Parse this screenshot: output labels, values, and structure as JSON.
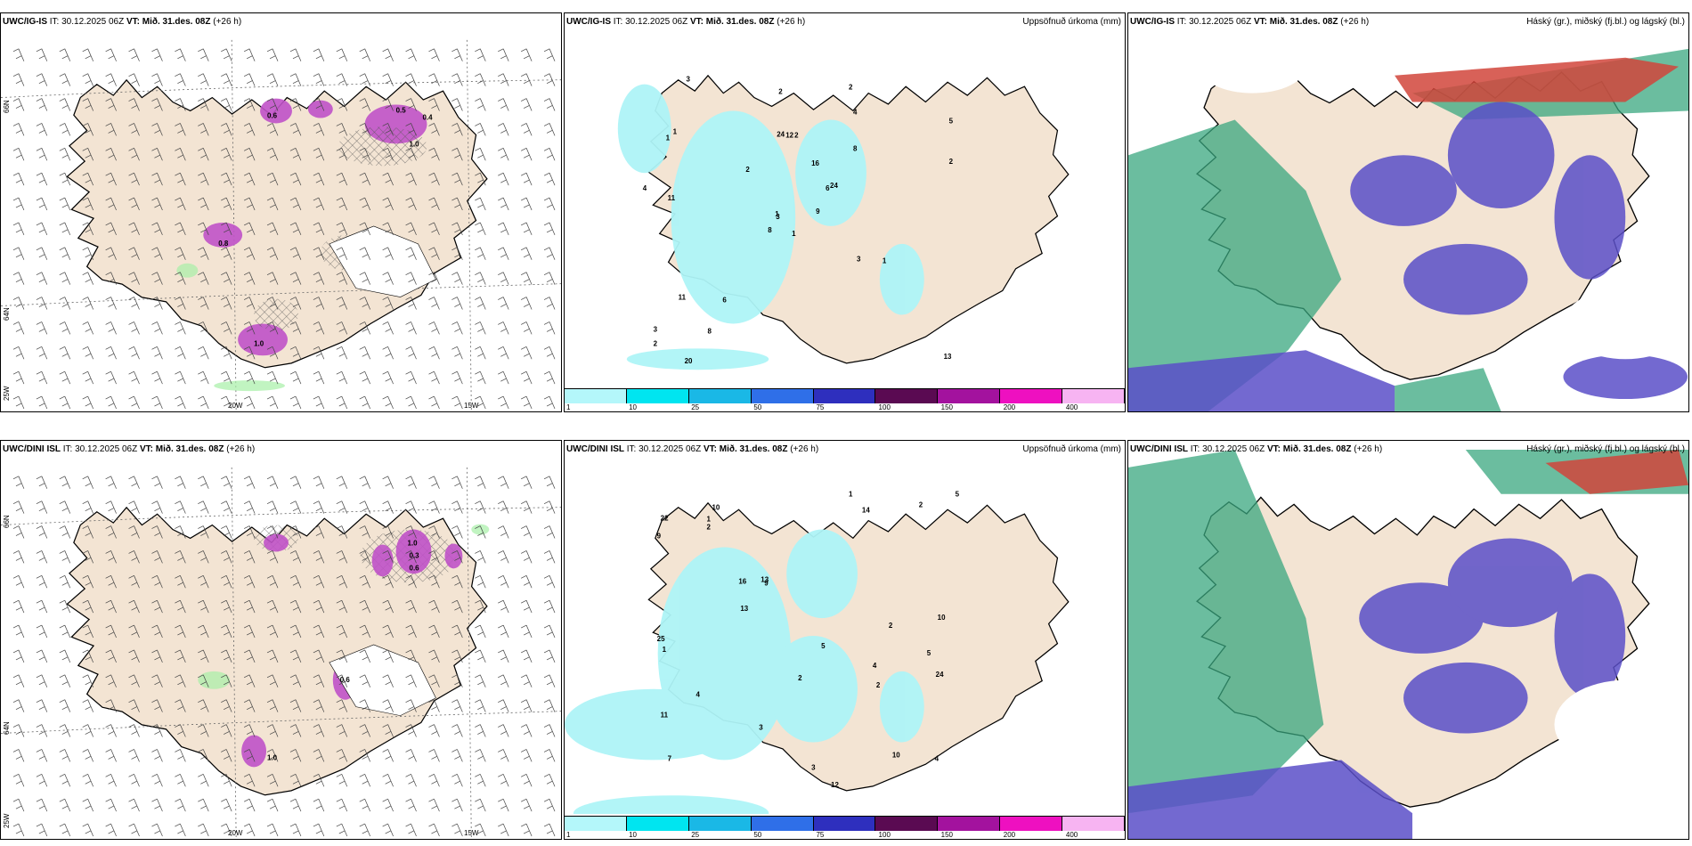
{
  "colors": {
    "land": "#f3e4d3",
    "sea": "#ffffff",
    "precip_light": "#aef4f7",
    "purple": "#c052c8",
    "green": "#a6f0a6",
    "cloud_green": "#3aa77f",
    "cloud_blue": "#5a4fc8",
    "cloud_red": "#d1453b"
  },
  "rows": [
    {
      "panels": [
        {
          "model": "UWC/IG-IS",
          "it_label": "IT:",
          "it": "30.12.2025 06Z",
          "vt_label": "VT:",
          "vt": "Mið. 31.des. 08Z",
          "lead": "(+26 h)"
        },
        {
          "model": "UWC/IG-IS",
          "it_label": "IT:",
          "it": "30.12.2025 06Z",
          "vt_label": "VT:",
          "vt": "Mið. 31.des. 08Z",
          "lead": "(+26 h)",
          "right_title": "Uppsöfnuð úrkoma (mm)"
        },
        {
          "model": "UWC/IG-IS",
          "it_label": "IT:",
          "it": "30.12.2025 06Z",
          "vt_label": "VT:",
          "vt": "Mið. 31.des. 08Z",
          "lead": "(+26 h)",
          "right_title": "Háský (gr.), miðský (fj.bl.) og lágský (bl.)"
        }
      ],
      "axis": {
        "lon1": "20W",
        "lon2": "15W",
        "lat1": "66N",
        "lat2": "64N",
        "lat3": "25W"
      }
    },
    {
      "panels": [
        {
          "model": "UWC/DINI ISL",
          "it_label": "IT:",
          "it": "30.12.2025 06Z",
          "vt_label": "VT:",
          "vt": "Mið. 31.des. 08Z",
          "lead": "(+26 h)"
        },
        {
          "model": "UWC/DINI ISL",
          "it_label": "IT:",
          "it": "30.12.2025 06Z",
          "vt_label": "VT:",
          "vt": "Mið. 31.des. 08Z",
          "lead": "(+26 h)",
          "right_title": "Uppsöfnuð úrkoma (mm)"
        },
        {
          "model": "UWC/DINI ISL",
          "it_label": "IT:",
          "it": "30.12.2025 06Z",
          "vt_label": "VT:",
          "vt": "Mið. 31.des. 08Z",
          "lead": "(+26 h)",
          "right_title": "Háský (gr.), miðský (fj.bl.) og lágský (bl.)"
        }
      ],
      "axis": {
        "lon1": "20W",
        "lon2": "15W",
        "lat1": "66N",
        "lat2": "64N",
        "lat3": "25W"
      }
    }
  ],
  "colorbar": {
    "ticks": [
      "1",
      "10",
      "25",
      "50",
      "75",
      "100",
      "150",
      "200",
      "400"
    ],
    "colors": [
      "#b4f7fa",
      "#00e5f0",
      "#1ab8e6",
      "#2f6fe8",
      "#2e2fbe",
      "#5a0a52",
      "#a3129e",
      "#ee10c0",
      "#f7b4f2"
    ]
  },
  "precip_top": [
    "1",
    "1",
    "3",
    "3",
    "6",
    "6",
    "2",
    "2",
    "4",
    "9",
    "3",
    "13",
    "11",
    "5",
    "8",
    "8",
    "20",
    "24",
    "16",
    "11",
    "2",
    "2",
    "8",
    "12",
    "24",
    "1",
    "1",
    "2",
    "4",
    "3",
    "2",
    "1"
  ],
  "precip_bottom": [
    "4",
    "5",
    "7",
    "10",
    "9",
    "10",
    "11",
    "14",
    "16",
    "12",
    "9",
    "25",
    "22",
    "4",
    "3",
    "10",
    "2",
    "5",
    "13",
    "4",
    "5",
    "2",
    "13",
    "24",
    "1",
    "1",
    "2",
    "1",
    "2",
    "2",
    "3"
  ],
  "map_values_top": [
    "0.5",
    "0.4",
    "1.0",
    "0.6",
    "0.8",
    "1.0"
  ],
  "map_values_bottom": [
    "1.0",
    "0.3",
    "0.6",
    "0.6",
    "1.0"
  ]
}
